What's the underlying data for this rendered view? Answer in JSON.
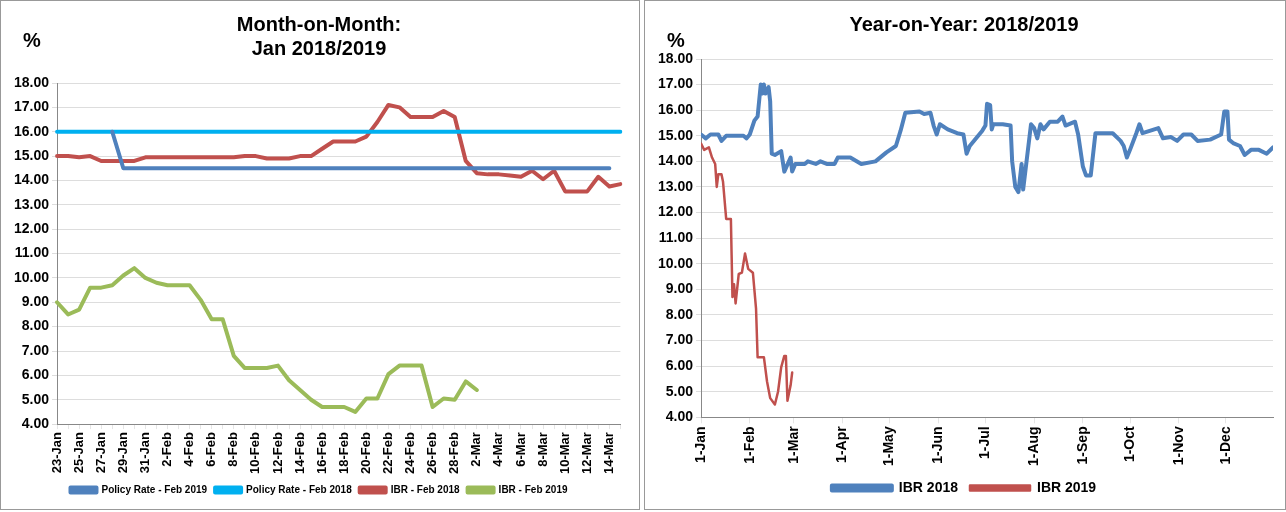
{
  "chart_data": [
    {
      "type": "line",
      "title": "Month-on-Month:\nJan 2018/2019",
      "ylabel": "%",
      "legend": "bottom",
      "grid": "y",
      "marker": "none",
      "categories": [
        "23-Jan",
        null,
        "25-Jan",
        null,
        "27-Jan",
        null,
        "29-Jan",
        null,
        "31-Jan",
        null,
        "2-Feb",
        null,
        "4-Feb",
        null,
        "6-Feb",
        null,
        "8-Feb",
        null,
        "10-Feb",
        null,
        "12-Feb",
        null,
        "14-Feb",
        null,
        "16-Feb",
        null,
        "18-Feb",
        null,
        "20-Feb",
        null,
        "22-Feb",
        null,
        "24-Feb",
        null,
        "26-Feb",
        null,
        "28-Feb",
        null,
        "2-Mar",
        null,
        "4-Mar",
        null,
        "6-Mar",
        null,
        "8-Mar",
        null,
        "10-Mar",
        null,
        "12-Mar",
        null,
        "14-Mar",
        null
      ],
      "ylim": [
        4,
        18
      ],
      "yticks": [
        {
          "value": 4,
          "label": "4.00"
        },
        {
          "value": 5,
          "label": "5.00"
        },
        {
          "value": 6,
          "label": "6.00"
        },
        {
          "value": 7,
          "label": "7.00"
        },
        {
          "value": 8,
          "label": "8.00"
        },
        {
          "value": 9,
          "label": "9.00"
        },
        {
          "value": 10,
          "label": "10.00"
        },
        {
          "value": 11,
          "label": "11.00"
        },
        {
          "value": 12,
          "label": "12.00"
        },
        {
          "value": 13,
          "label": "13.00"
        },
        {
          "value": 14,
          "label": "14.00"
        },
        {
          "value": 15,
          "label": "15.00"
        },
        {
          "value": 16,
          "label": "16.00"
        },
        {
          "value": 17,
          "label": "17.00"
        },
        {
          "value": 18,
          "label": "18.00"
        }
      ],
      "series": [
        {
          "name": "Policy Rate - Feb 2019",
          "color": "#4f81bd",
          "values": [
            null,
            null,
            null,
            null,
            null,
            16,
            14.5,
            14.5,
            14.5,
            14.5,
            14.5,
            14.5,
            14.5,
            14.5,
            14.5,
            14.5,
            14.5,
            14.5,
            14.5,
            14.5,
            14.5,
            14.5,
            14.5,
            14.5,
            14.5,
            14.5,
            14.5,
            14.5,
            14.5,
            14.5,
            14.5,
            14.5,
            14.5,
            14.5,
            14.5,
            14.5,
            14.5,
            14.5,
            14.5,
            14.5,
            14.5,
            14.5,
            14.5,
            14.5,
            14.5,
            14.5,
            14.5,
            14.5,
            14.5,
            14.5,
            14.5,
            null
          ]
        },
        {
          "name": "Policy Rate - Feb 2018",
          "color": "#00b0f0",
          "values": [
            16,
            16,
            16,
            16,
            16,
            16,
            16,
            16,
            16,
            16,
            16,
            16,
            16,
            16,
            16,
            16,
            16,
            16,
            16,
            16,
            16,
            16,
            16,
            16,
            16,
            16,
            16,
            16,
            16,
            16,
            16,
            16,
            16,
            16,
            16,
            16,
            16,
            16,
            16,
            16,
            16,
            16,
            16,
            16,
            16,
            16,
            16,
            16,
            16,
            16,
            16,
            16
          ]
        },
        {
          "name": "IBR - Feb 2018",
          "color": "#c0504d",
          "values": [
            15,
            15,
            14.95,
            15,
            14.8,
            14.8,
            14.8,
            14.8,
            14.95,
            14.95,
            14.95,
            14.95,
            14.95,
            14.95,
            14.95,
            14.95,
            14.95,
            15,
            15,
            14.9,
            14.9,
            14.9,
            15,
            15,
            15.3,
            15.6,
            15.6,
            15.6,
            15.8,
            16.4,
            17.1,
            17,
            16.6,
            16.6,
            16.6,
            16.85,
            16.6,
            14.8,
            14.3,
            14.25,
            14.25,
            14.2,
            14.15,
            14.4,
            14.05,
            14.4,
            13.55,
            13.55,
            13.55,
            14.15,
            13.75,
            13.85
          ]
        },
        {
          "name": "IBR - Feb 2019",
          "color": "#9bbb59",
          "values": [
            9,
            8.5,
            8.7,
            9.6,
            9.6,
            9.7,
            10.1,
            10.4,
            10,
            9.8,
            9.7,
            9.7,
            9.7,
            9.1,
            8.3,
            8.3,
            6.8,
            6.3,
            6.3,
            6.3,
            6.4,
            5.8,
            5.4,
            5,
            4.7,
            4.7,
            4.7,
            4.5,
            5.05,
            5.05,
            6.05,
            6.4,
            6.4,
            6.4,
            4.7,
            5.05,
            5,
            5.75,
            5.4,
            null,
            null,
            null,
            null,
            null,
            null,
            null,
            null,
            null,
            null,
            null,
            null,
            null
          ]
        }
      ]
    },
    {
      "type": "line",
      "title": "Year-on-Year: 2018/2019",
      "ylabel": "%",
      "legend": "bottom",
      "grid": "y",
      "marker": "none",
      "xlim": [
        "--01-01",
        "--12-31"
      ],
      "xticks": [
        {
          "value": "--01-01",
          "label": "1-Jan"
        },
        {
          "value": "--02-01",
          "label": "1-Feb"
        },
        {
          "value": "--03-01",
          "label": "1-Mar"
        },
        {
          "value": "--04-01",
          "label": "1-Apr"
        },
        {
          "value": "--05-01",
          "label": "1-May"
        },
        {
          "value": "--06-01",
          "label": "1-Jun"
        },
        {
          "value": "--07-01",
          "label": "1-Jul"
        },
        {
          "value": "--08-01",
          "label": "1-Aug"
        },
        {
          "value": "--09-01",
          "label": "1-Sep"
        },
        {
          "value": "--10-01",
          "label": "1-Oct"
        },
        {
          "value": "--11-01",
          "label": "1-Nov"
        },
        {
          "value": "--12-01",
          "label": "1-Dec"
        }
      ],
      "ylim": [
        4,
        18
      ],
      "yticks": [
        {
          "value": 4,
          "label": "4.00"
        },
        {
          "value": 5,
          "label": "5.00"
        },
        {
          "value": 6,
          "label": "6.00"
        },
        {
          "value": 7,
          "label": "7.00"
        },
        {
          "value": 8,
          "label": "8.00"
        },
        {
          "value": 9,
          "label": "9.00"
        },
        {
          "value": 10,
          "label": "10.00"
        },
        {
          "value": 11,
          "label": "11.00"
        },
        {
          "value": 12,
          "label": "12.00"
        },
        {
          "value": 13,
          "label": "13.00"
        },
        {
          "value": 14,
          "label": "14.00"
        },
        {
          "value": 15,
          "label": "15.00"
        },
        {
          "value": 16,
          "label": "16.00"
        },
        {
          "value": 17,
          "label": "17.00"
        },
        {
          "value": 18,
          "label": "18.00"
        }
      ],
      "series": [
        {
          "name": "IBR 2018",
          "color": "#4f81bd",
          "x": [
            "--01-01",
            "--01-04",
            "--01-07",
            "--01-12",
            "--01-14",
            "--01-17",
            "--01-28",
            "--01-30",
            "--02-01",
            "--02-04",
            "--02-06",
            "--02-08",
            "--02-09",
            "--02-10",
            "--02-11",
            "--02-13",
            "--02-14",
            "--02-15",
            "--02-17",
            "--02-21",
            "--02-23",
            "--02-27",
            "--02-28",
            "--03-02",
            "--03-08",
            "--03-10",
            "--03-15",
            "--03-18",
            "--03-22",
            "--03-27",
            "--03-29",
            "--04-06",
            "--04-13",
            "--04-22",
            "--04-29",
            "--05-05",
            "--05-08",
            "--05-11",
            "--05-20",
            "--05-23",
            "--05-27",
            "--05-29",
            "--05-31",
            "--06-02",
            "--06-07",
            "--06-13",
            "--06-17",
            "--06-19",
            "--06-21",
            "--06-29",
            "--07-01",
            "--07-02",
            "--07-04",
            "--07-05",
            "--07-06",
            "--07-12",
            "--07-17",
            "--07-18",
            "--07-20",
            "--07-22",
            "--07-24",
            "--07-25",
            "--07-30",
            "--08-01",
            "--08-03",
            "--08-05",
            "--08-07",
            "--08-11",
            "--08-16",
            "--08-19",
            "--08-21",
            "--08-27",
            "--08-29",
            "--09-01",
            "--09-03",
            "--09-06",
            "--09-09",
            "--09-13",
            "--09-20",
            "--09-25",
            "--09-27",
            "--09-29",
            "--10-01",
            "--10-05",
            "--10-07",
            "--10-09",
            "--10-14",
            "--10-19",
            "--10-22",
            "--10-27",
            "--10-31",
            "--11-04",
            "--11-09",
            "--11-13",
            "--11-21",
            "--11-28",
            "--11-30",
            "--12-02",
            "--12-03",
            "--12-06",
            "--12-10",
            "--12-13",
            "--12-17",
            "--12-22",
            "--12-27",
            "--12-31"
          ],
          "values": [
            15.05,
            14.9,
            15.05,
            15.05,
            14.8,
            15,
            15,
            14.9,
            15.05,
            15.6,
            15.75,
            17,
            16.65,
            17,
            16.65,
            16.9,
            16.35,
            14.3,
            14.25,
            14.4,
            13.6,
            14.15,
            13.6,
            13.9,
            13.9,
            14,
            13.9,
            14,
            13.9,
            13.9,
            14.15,
            14.15,
            13.9,
            14,
            14.35,
            14.6,
            15.2,
            15.9,
            15.95,
            15.85,
            15.9,
            15.4,
            15.05,
            15.45,
            15.25,
            15.1,
            15.05,
            14.3,
            14.6,
            15.2,
            15.4,
            16.25,
            16.2,
            15.25,
            15.45,
            15.45,
            15.4,
            14,
            13,
            12.8,
            13.9,
            12.9,
            15.45,
            15.3,
            14.9,
            15.45,
            15.25,
            15.55,
            15.55,
            15.75,
            15.4,
            15.55,
            15.05,
            13.8,
            13.45,
            13.45,
            15.1,
            15.1,
            15.1,
            14.8,
            14.6,
            14.15,
            14.45,
            15.1,
            15.45,
            15.1,
            15.2,
            15.3,
            14.9,
            14.95,
            14.8,
            15.05,
            15.05,
            14.8,
            14.85,
            15.05,
            15.95,
            15.95,
            14.85,
            14.7,
            14.6,
            14.25,
            14.45,
            14.45,
            14.3,
            14.55
          ]
        },
        {
          "name": "IBR 2019",
          "color": "#c0504d",
          "x": [
            "--01-01",
            "--01-03",
            "--01-06",
            "--01-08",
            "--01-10",
            "--01-11",
            "--01-12",
            "--01-14",
            "--01-15",
            "--01-17",
            "--01-20",
            "--01-21",
            "--01-22",
            "--01-23",
            "--01-25",
            "--01-27",
            "--01-29",
            "--01-31",
            "--02-03",
            "--02-05",
            "--02-06",
            "--02-10",
            "--02-12",
            "--02-14",
            "--02-17",
            "--02-19",
            "--02-21",
            "--02-23",
            "--02-24",
            "--02-25",
            "--02-27",
            "--02-28"
          ],
          "values": [
            14.7,
            14.45,
            14.55,
            14.15,
            13.9,
            13,
            13.5,
            13.5,
            13.2,
            11.75,
            11.75,
            8.7,
            9.2,
            8.45,
            9.6,
            9.65,
            10.4,
            9.8,
            9.65,
            8.25,
            6.35,
            6.35,
            5.4,
            4.75,
            4.5,
            5,
            5.95,
            6.4,
            6.4,
            4.65,
            5.25,
            5.75
          ]
        }
      ]
    }
  ]
}
